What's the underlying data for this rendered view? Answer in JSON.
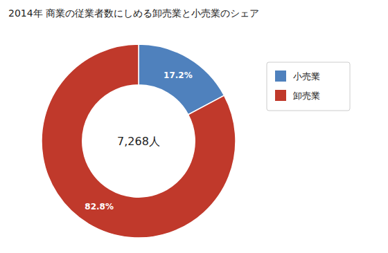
{
  "chart_data": {
    "type": "donut",
    "title": "2014年 商業の従業者数にしめる卸売業と小売業のシェア",
    "categories": [
      "小売業",
      "卸売業"
    ],
    "values": [
      17.2,
      82.8
    ],
    "value_labels": [
      "17.2%",
      "82.8%"
    ],
    "colors": [
      "#4F81BD",
      "#C0392B"
    ],
    "annotations": [
      "7,268人"
    ],
    "data_labels": true,
    "legend": "right"
  }
}
